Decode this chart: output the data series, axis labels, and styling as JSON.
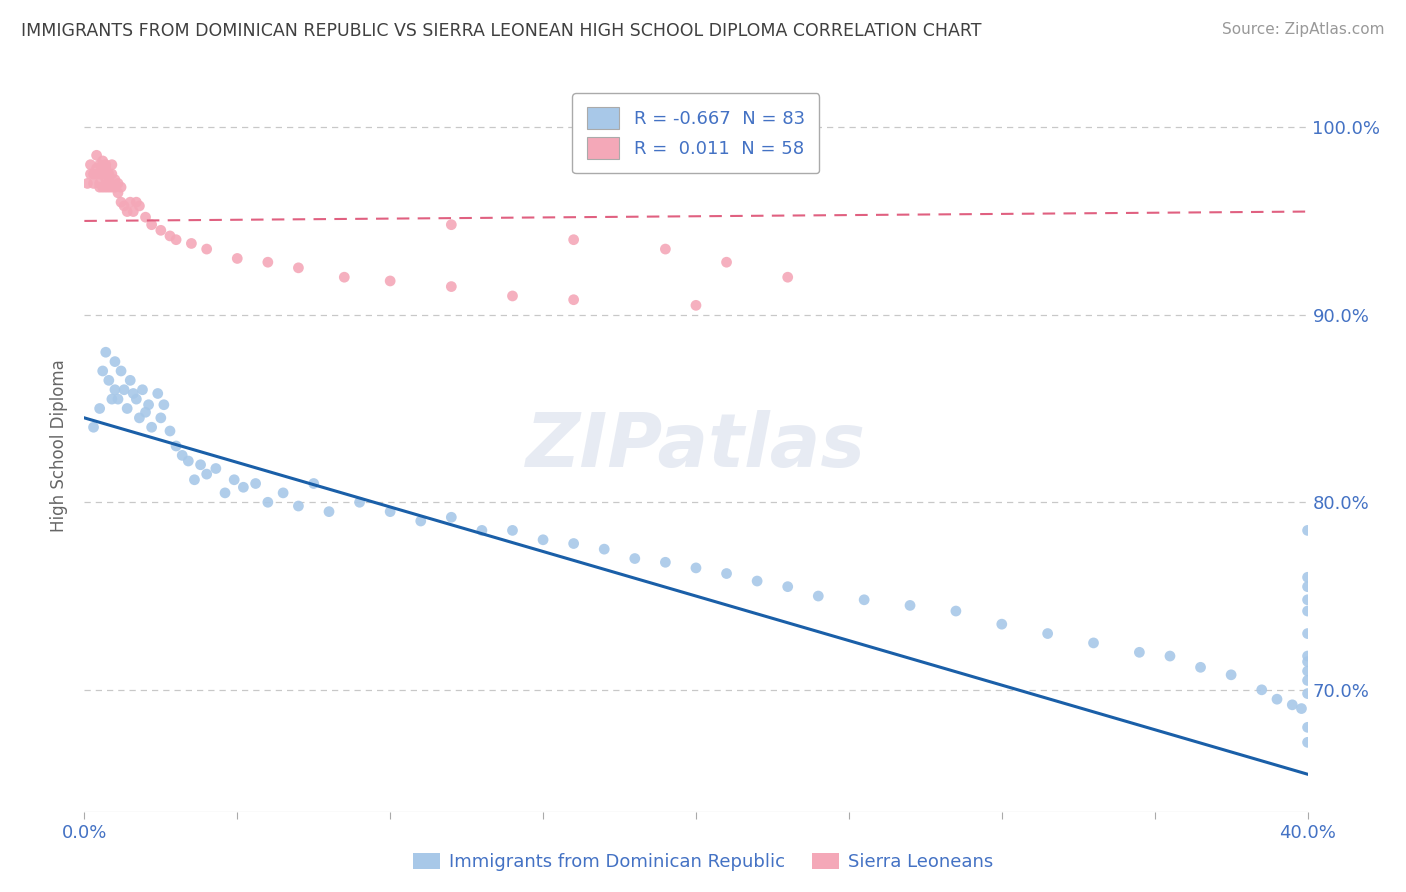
{
  "title": "IMMIGRANTS FROM DOMINICAN REPUBLIC VS SIERRA LEONEAN HIGH SCHOOL DIPLOMA CORRELATION CHART",
  "source": "Source: ZipAtlas.com",
  "ylabel": "High School Diploma",
  "xlim": [
    0.0,
    0.4
  ],
  "ylim": [
    0.635,
    1.025
  ],
  "xtick_positions": [
    0.0,
    0.05,
    0.1,
    0.15,
    0.2,
    0.25,
    0.3,
    0.35,
    0.4
  ],
  "yticks": [
    0.7,
    0.8,
    0.9,
    1.0
  ],
  "yticklabels": [
    "70.0%",
    "80.0%",
    "90.0%",
    "100.0%"
  ],
  "blue_color": "#a8c8e8",
  "pink_color": "#f4a8b8",
  "blue_line_color": "#1a5fa8",
  "pink_line_color": "#e06080",
  "legend_R1": "-0.667",
  "legend_N1": "83",
  "legend_R2": "0.011",
  "legend_N2": "58",
  "legend_label1": "Immigrants from Dominican Republic",
  "legend_label2": "Sierra Leoneans",
  "bg_color": "#ffffff",
  "grid_color": "#c8c8c8",
  "axis_label_color": "#4472c4",
  "title_color": "#404040",
  "watermark": "ZIPatlas",
  "blue_trend_x0": 0.0,
  "blue_trend_y0": 0.845,
  "blue_trend_x1": 0.4,
  "blue_trend_y1": 0.655,
  "pink_trend_x0": 0.0,
  "pink_trend_y0": 0.95,
  "pink_trend_x1": 0.4,
  "pink_trend_y1": 0.955,
  "blue_scatter_x": [
    0.003,
    0.005,
    0.006,
    0.007,
    0.008,
    0.009,
    0.01,
    0.01,
    0.011,
    0.012,
    0.013,
    0.014,
    0.015,
    0.016,
    0.017,
    0.018,
    0.019,
    0.02,
    0.021,
    0.022,
    0.024,
    0.025,
    0.026,
    0.028,
    0.03,
    0.032,
    0.034,
    0.036,
    0.038,
    0.04,
    0.043,
    0.046,
    0.049,
    0.052,
    0.056,
    0.06,
    0.065,
    0.07,
    0.075,
    0.08,
    0.09,
    0.1,
    0.11,
    0.12,
    0.13,
    0.14,
    0.15,
    0.16,
    0.17,
    0.18,
    0.19,
    0.2,
    0.21,
    0.22,
    0.23,
    0.24,
    0.255,
    0.27,
    0.285,
    0.3,
    0.315,
    0.33,
    0.345,
    0.355,
    0.365,
    0.375,
    0.385,
    0.39,
    0.395,
    0.398,
    0.4,
    0.4,
    0.4,
    0.4,
    0.4,
    0.4,
    0.4,
    0.4,
    0.4,
    0.4,
    0.4,
    0.4,
    0.4
  ],
  "blue_scatter_y": [
    0.84,
    0.85,
    0.87,
    0.88,
    0.865,
    0.855,
    0.875,
    0.86,
    0.855,
    0.87,
    0.86,
    0.85,
    0.865,
    0.858,
    0.855,
    0.845,
    0.86,
    0.848,
    0.852,
    0.84,
    0.858,
    0.845,
    0.852,
    0.838,
    0.83,
    0.825,
    0.822,
    0.812,
    0.82,
    0.815,
    0.818,
    0.805,
    0.812,
    0.808,
    0.81,
    0.8,
    0.805,
    0.798,
    0.81,
    0.795,
    0.8,
    0.795,
    0.79,
    0.792,
    0.785,
    0.785,
    0.78,
    0.778,
    0.775,
    0.77,
    0.768,
    0.765,
    0.762,
    0.758,
    0.755,
    0.75,
    0.748,
    0.745,
    0.742,
    0.735,
    0.73,
    0.725,
    0.72,
    0.718,
    0.712,
    0.708,
    0.7,
    0.695,
    0.692,
    0.69,
    0.785,
    0.755,
    0.73,
    0.71,
    0.718,
    0.742,
    0.76,
    0.748,
    0.715,
    0.705,
    0.698,
    0.68,
    0.672
  ],
  "pink_scatter_x": [
    0.001,
    0.002,
    0.002,
    0.003,
    0.003,
    0.004,
    0.004,
    0.004,
    0.005,
    0.005,
    0.005,
    0.005,
    0.006,
    0.006,
    0.006,
    0.007,
    0.007,
    0.007,
    0.007,
    0.008,
    0.008,
    0.008,
    0.009,
    0.009,
    0.009,
    0.01,
    0.01,
    0.011,
    0.011,
    0.012,
    0.012,
    0.013,
    0.014,
    0.015,
    0.016,
    0.017,
    0.018,
    0.02,
    0.022,
    0.025,
    0.028,
    0.03,
    0.035,
    0.04,
    0.05,
    0.06,
    0.07,
    0.085,
    0.1,
    0.12,
    0.14,
    0.16,
    0.2,
    0.12,
    0.16,
    0.19,
    0.21,
    0.23
  ],
  "pink_scatter_y": [
    0.97,
    0.98,
    0.975,
    0.975,
    0.97,
    0.975,
    0.985,
    0.978,
    0.975,
    0.97,
    0.968,
    0.98,
    0.982,
    0.975,
    0.968,
    0.978,
    0.972,
    0.968,
    0.98,
    0.975,
    0.968,
    0.972,
    0.968,
    0.975,
    0.98,
    0.972,
    0.968,
    0.97,
    0.965,
    0.968,
    0.96,
    0.958,
    0.955,
    0.96,
    0.955,
    0.96,
    0.958,
    0.952,
    0.948,
    0.945,
    0.942,
    0.94,
    0.938,
    0.935,
    0.93,
    0.928,
    0.925,
    0.92,
    0.918,
    0.915,
    0.91,
    0.908,
    0.905,
    0.948,
    0.94,
    0.935,
    0.928,
    0.92
  ]
}
